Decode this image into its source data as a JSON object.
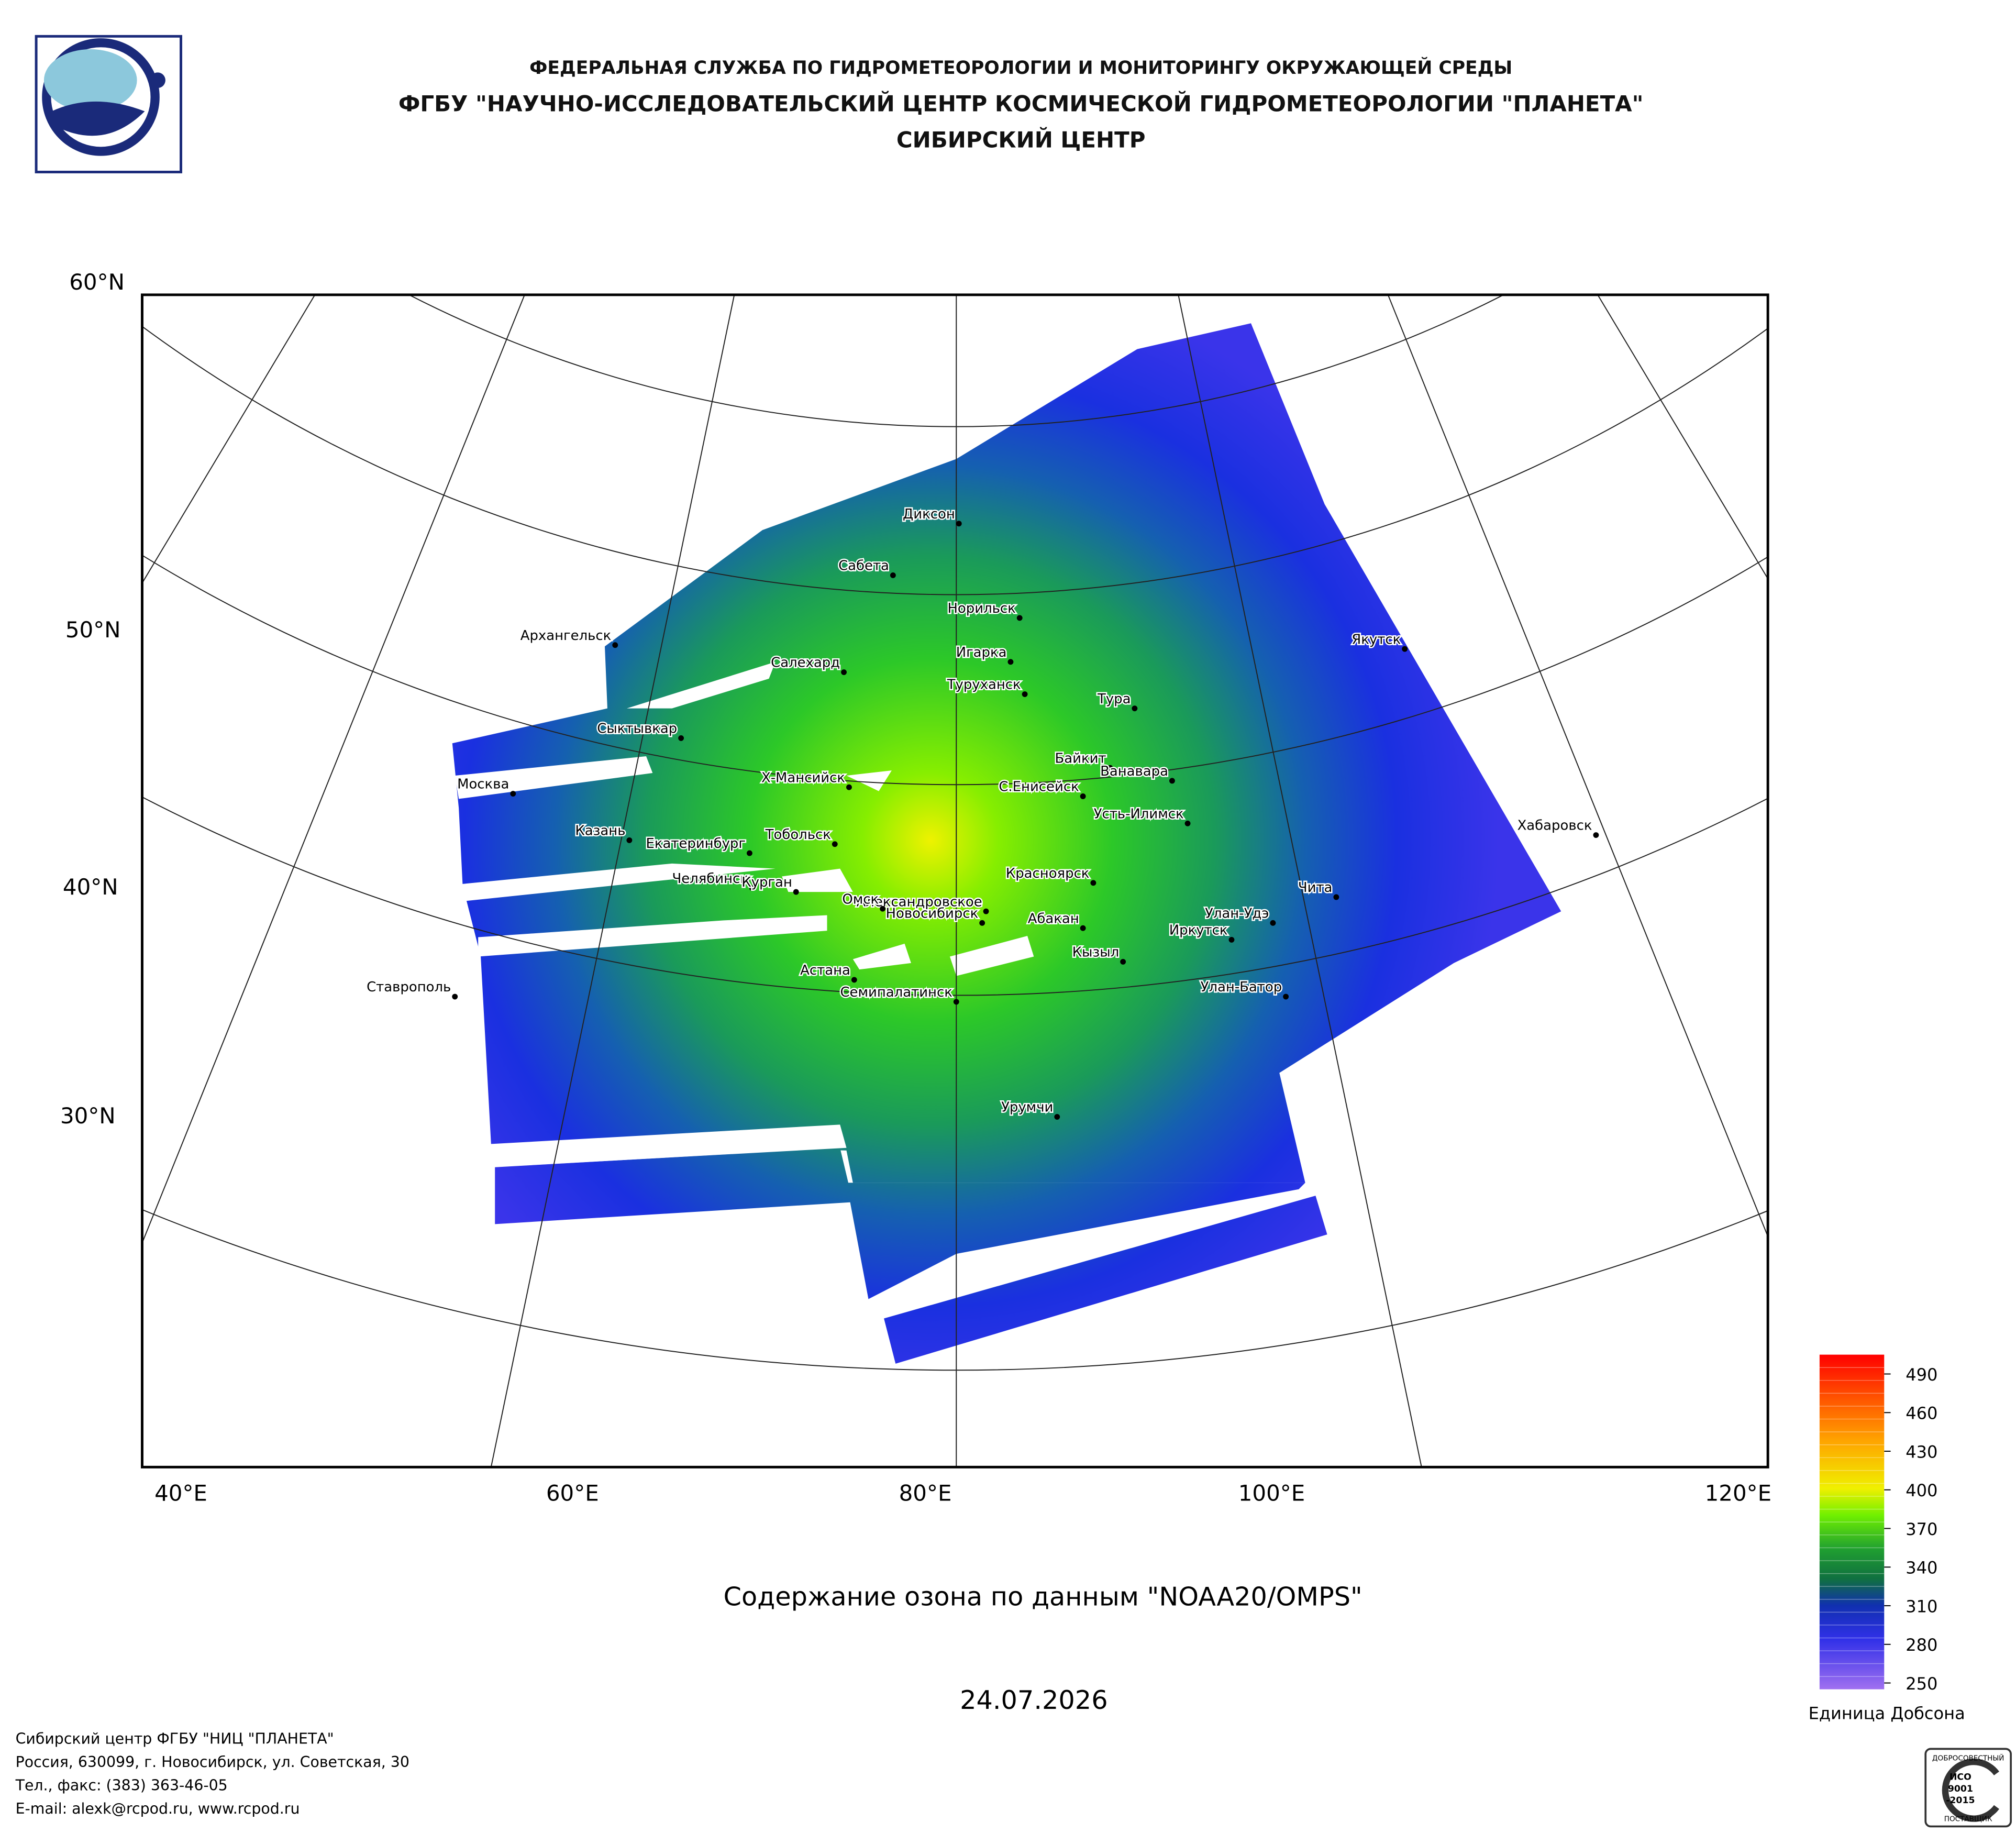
{
  "header": {
    "line1": "ФЕДЕРАЛЬНАЯ СЛУЖБА ПО ГИДРОМЕТЕОРОЛОГИИ И МОНИТОРИНГУ ОКРУЖАЮЩЕЙ СРЕДЫ",
    "line2": "ФГБУ \"НАУЧНО-ИССЛЕДОВАТЕЛЬСКИЙ ЦЕНТР КОСМИЧЕСКОЙ ГИДРОМЕТЕОРОЛОГИИ \"ПЛАНЕТА\"",
    "line3": "СИБИРСКИЙ ЦЕНТР"
  },
  "map": {
    "lat_labels": [
      "60°N",
      "50°N",
      "40°N",
      "30°N"
    ],
    "lon_labels": [
      "40°E",
      "60°E",
      "80°E",
      "100°E",
      "120°E"
    ],
    "cities": [
      "Диксон",
      "Сабета",
      "Норильск",
      "Архангельск",
      "Якутск",
      "Салехард",
      "Игарка",
      "Туруханск",
      "Тура",
      "Сыктывкар",
      "Байкит",
      "Ванавара",
      "Москва",
      "Х-Мансийск",
      "С.Енисейск",
      "Усть-Илимск",
      "Хабаровск",
      "Казань",
      "Тобольск",
      "Екатеринбург",
      "Красноярск",
      "Челябинск",
      "Курган",
      "Чита",
      "Александровское",
      "Омск",
      "Новосибирск",
      "Абакан",
      "Улан-Удэ",
      "Иркутск",
      "Астана",
      "Кызыл",
      "Семипалатинск",
      "Ставрополь",
      "Улан-Батор",
      "Урумчи"
    ]
  },
  "title": "Содержание озона по данным \"NOAA20/OMPS\"",
  "date": "24.07.2026",
  "legend": {
    "ticks": [
      490,
      460,
      430,
      400,
      370,
      340,
      310,
      280,
      250
    ],
    "lim": [
      245,
      505
    ],
    "unit": "Единица Добсона"
  },
  "footer": [
    "Сибирский центр ФГБУ \"НИЦ \"ПЛАНЕТА\"",
    "Россия, 630099, г. Новосибирск, ул. Советская, 30",
    "Тел., факс: (383) 363-46-05",
    "E-mail: alexk@rcpod.ru, www.rcpod.ru"
  ],
  "badge": [
    "ДОБРОСОВЕСТНЫЙ",
    "ИСО",
    "9001",
    "-2015",
    "ПОСТАВЩИК"
  ]
}
